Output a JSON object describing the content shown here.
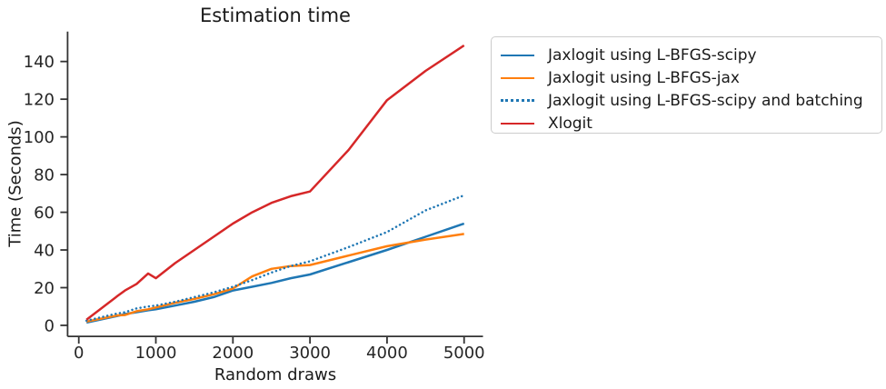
{
  "chart_data": {
    "type": "line",
    "title": "Estimation time",
    "xlabel": "Random draws",
    "ylabel": "Time (Seconds)",
    "grid": false,
    "legend_position": "outside upper right",
    "x_ticks": [
      0,
      1000,
      2000,
      3000,
      4000,
      5000
    ],
    "y_ticks": [
      0,
      20,
      40,
      60,
      80,
      100,
      120,
      140
    ],
    "xlim": [
      -145,
      5245
    ],
    "ylim": [
      -5.85,
      155.85
    ],
    "x": [
      100,
      500,
      600,
      750,
      900,
      1000,
      1250,
      1500,
      1750,
      2000,
      2250,
      2500,
      2750,
      3000,
      3500,
      4000,
      4500,
      5000
    ],
    "series": [
      {
        "name": "Jaxlogit using L-BFGS-scipy",
        "color": "#1f77b4",
        "style": "solid",
        "values": [
          1.5,
          5.0,
          6.0,
          7.0,
          8.0,
          8.5,
          10.5,
          12.5,
          15.0,
          18.5,
          20.5,
          22.5,
          25.0,
          27.0,
          33.5,
          40.0,
          47.0,
          54.0
        ]
      },
      {
        "name": "Jaxlogit using L-BFGS-jax",
        "color": "#ff7f0e",
        "style": "solid",
        "values": [
          2.0,
          5.3,
          5.5,
          7.5,
          8.5,
          9.5,
          12.0,
          14.0,
          16.5,
          19.5,
          26.0,
          30.0,
          31.5,
          32.0,
          37.0,
          42.0,
          45.5,
          48.5
        ]
      },
      {
        "name": "Jaxlogit using L-BFGS-scipy and batching",
        "color": "#1f77b4",
        "style": "dotted",
        "values": [
          2.5,
          6.3,
          7.0,
          9.0,
          10.0,
          10.5,
          12.5,
          15.0,
          17.5,
          20.5,
          24.0,
          28.0,
          31.5,
          34.0,
          41.5,
          49.5,
          61.0,
          69.0
        ]
      },
      {
        "name": "Xlogit",
        "color": "#d62728",
        "style": "solid",
        "values": [
          3.0,
          15.5,
          18.5,
          22.0,
          27.5,
          25.0,
          33.0,
          40.0,
          47.0,
          54.0,
          60.0,
          65.0,
          68.5,
          71.0,
          93.0,
          119.5,
          135.0,
          148.5
        ]
      }
    ],
    "axis_color": "#333333",
    "tick_label_color": "#262626"
  }
}
